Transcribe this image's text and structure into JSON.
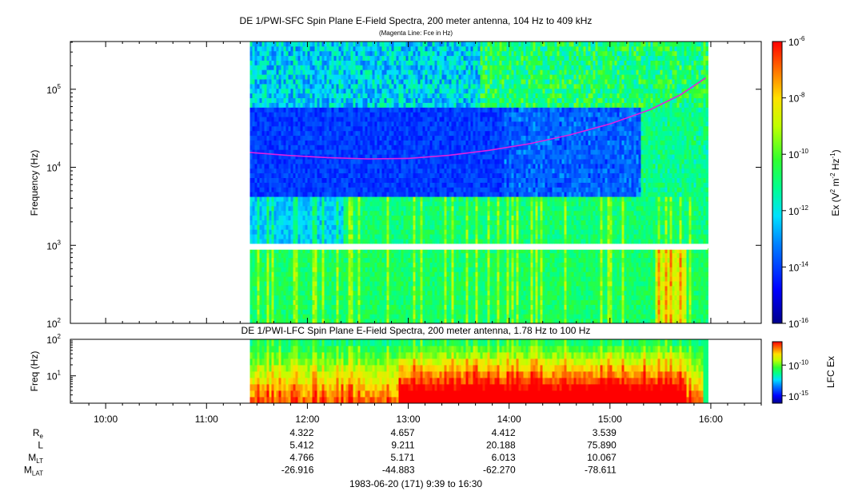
{
  "chart_data": [
    {
      "type": "heatmap",
      "title": "DE 1/PWI-SFC  Spin Plane E-Field Spectra, 200 meter antenna, 104 Hz to 409 kHz",
      "subtitle": "(Magenta Line: Fce in Hz)",
      "ylabel": "Frequency (Hz)",
      "yscale": "log",
      "ylim": [
        100,
        409000
      ],
      "y_ticks": [
        {
          "value": 100,
          "base": "10",
          "exp": "2"
        },
        {
          "value": 1000,
          "base": "10",
          "exp": "3"
        },
        {
          "value": 10000,
          "base": "10",
          "exp": "4"
        },
        {
          "value": 100000,
          "base": "10",
          "exp": "5"
        }
      ],
      "x_range_hours": [
        9.65,
        16.5
      ],
      "data_start_hour": 11.43,
      "data_end_hour": 15.97,
      "gap_frequency_hz": [
        880,
        1000
      ],
      "fce_line": {
        "label": "Fce in Hz",
        "color": "#e020e0",
        "x_hours": [
          11.43,
          11.8,
          12.2,
          12.6,
          13.0,
          13.4,
          13.8,
          14.2,
          14.6,
          15.0,
          15.4,
          15.7,
          15.95
        ],
        "y_hz": [
          15500,
          14200,
          13300,
          12800,
          13000,
          14200,
          16500,
          20000,
          26000,
          36000,
          55000,
          85000,
          140000
        ]
      },
      "colorbar": {
        "label": "Ex (V² m⁻² Hz⁻¹)",
        "label_parts": {
          "a": "Ex (V",
          "b": "2",
          "c": " m",
          "d": "-2",
          "e": " Hz",
          "f": "-1",
          "g": ")"
        },
        "scale": "log",
        "range": [
          1e-16,
          1e-06
        ],
        "ticks": [
          {
            "value": 1e-06,
            "base": "10",
            "exp": "-6"
          },
          {
            "value": 1e-08,
            "base": "10",
            "exp": "-8"
          },
          {
            "value": 1e-10,
            "base": "10",
            "exp": "-10"
          },
          {
            "value": 1e-12,
            "base": "10",
            "exp": "-12"
          },
          {
            "value": 1e-14,
            "base": "10",
            "exp": "-14"
          },
          {
            "value": 1e-16,
            "base": "10",
            "exp": "-16"
          }
        ]
      }
    },
    {
      "type": "heatmap",
      "title": "DE 1/PWI-LFC  Spin Plane E-Field Spectra, 200 meter antenna, 1.78 Hz to 100 Hz",
      "ylabel": "Freq (Hz)",
      "yscale": "log",
      "ylim": [
        1.78,
        100
      ],
      "y_ticks": [
        {
          "value": 10,
          "base": "10",
          "exp": "1"
        },
        {
          "value": 100,
          "base": "10",
          "exp": "2"
        }
      ],
      "xlabel": "1983-06-20 (171) 9:39 to 16:30",
      "x_ticks": [
        "10:00",
        "11:00",
        "12:00",
        "13:00",
        "14:00",
        "15:00",
        "16:00"
      ],
      "x_tick_hours": [
        10,
        11,
        12,
        13,
        14,
        15,
        16
      ],
      "colorbar": {
        "label": "LFC Ex",
        "scale": "log",
        "ticks": [
          {
            "value": 1e-10,
            "base": "10",
            "exp": "-10"
          },
          {
            "value": 1e-15,
            "base": "10",
            "exp": "-15"
          }
        ]
      }
    }
  ],
  "ephemeris": {
    "rows": [
      {
        "label": "R",
        "sub": "e",
        "values": [
          "4.322",
          "4.657",
          "4.412",
          "3.539"
        ]
      },
      {
        "label": "L",
        "sub": "",
        "values": [
          "5.412",
          "9.211",
          "20.188",
          "75.890"
        ]
      },
      {
        "label": "M",
        "sub": "LT",
        "values": [
          "4.766",
          "5.171",
          "6.013",
          "10.067"
        ]
      },
      {
        "label": "M",
        "sub": "LAT",
        "values": [
          "-26.916",
          "-44.883",
          "-62.270",
          "-78.611"
        ]
      }
    ],
    "column_hours": [
      12,
      13,
      14,
      15
    ]
  }
}
